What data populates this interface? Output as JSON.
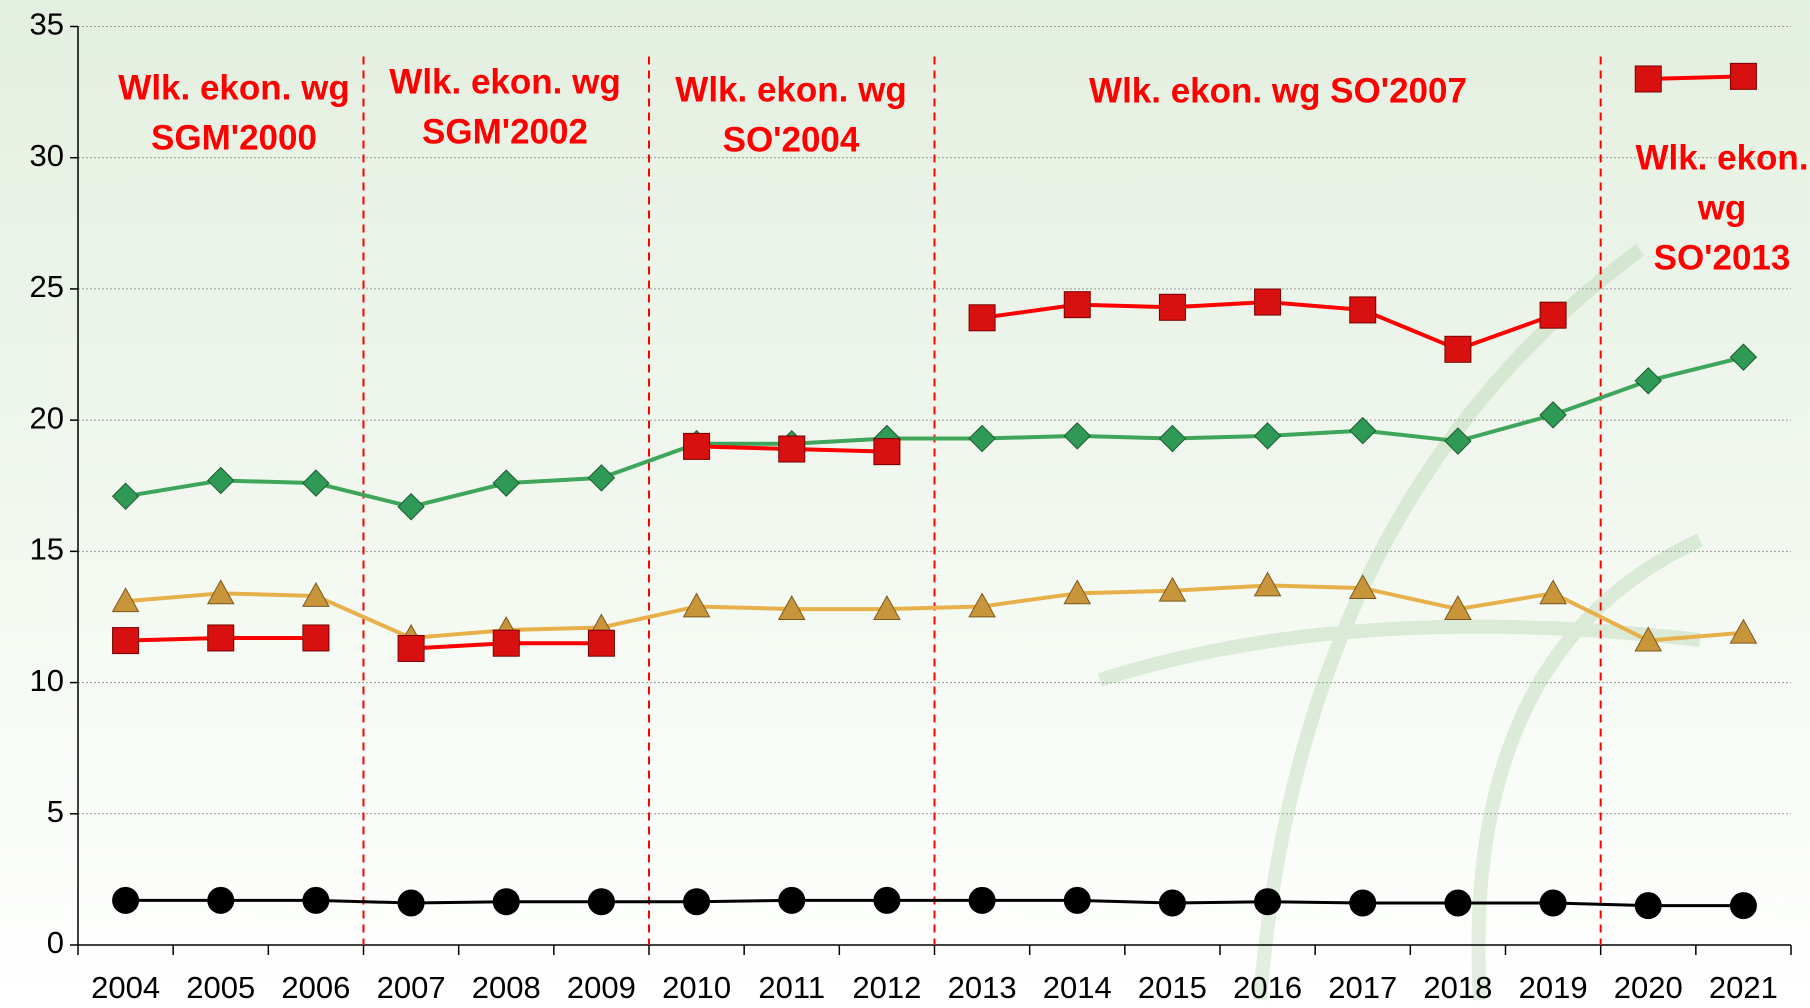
{
  "chart_data": {
    "type": "line",
    "categories": [
      "2004",
      "2005",
      "2006",
      "2007",
      "2008",
      "2009",
      "2010",
      "2011",
      "2012",
      "2013",
      "2014",
      "2015",
      "2016",
      "2017",
      "2018",
      "2019",
      "2020",
      "2021"
    ],
    "ylim": [
      0,
      35
    ],
    "yticks": [
      0,
      5,
      10,
      15,
      20,
      25,
      30,
      35
    ],
    "grid": true,
    "series": [
      {
        "color": "#e8b04a",
        "marker": "triangle",
        "values": [
          13.1,
          13.4,
          13.3,
          11.7,
          12.0,
          12.1,
          12.9,
          12.8,
          12.8,
          12.9,
          13.4,
          13.5,
          13.7,
          13.6,
          12.8,
          13.4,
          11.6,
          11.9
        ]
      },
      {
        "color": "#3ea55a",
        "marker": "diamond",
        "values": [
          17.1,
          17.7,
          17.6,
          16.7,
          17.6,
          17.8,
          19.1,
          19.1,
          19.3,
          19.3,
          19.4,
          19.3,
          19.4,
          19.6,
          19.2,
          20.2,
          21.5,
          22.4
        ]
      },
      {
        "color": "#ff0000",
        "marker": "square",
        "values": [
          11.6,
          11.7,
          11.7,
          null,
          null,
          null,
          null,
          null,
          null,
          null,
          null,
          null,
          null,
          null,
          null,
          null,
          null,
          null
        ]
      },
      {
        "color": "#ff0000",
        "marker": "square",
        "values": [
          null,
          null,
          null,
          11.3,
          11.5,
          11.5,
          null,
          null,
          null,
          null,
          null,
          null,
          null,
          null,
          null,
          null,
          null,
          null
        ]
      },
      {
        "color": "#ff0000",
        "marker": "square",
        "values": [
          null,
          null,
          null,
          null,
          null,
          null,
          19.0,
          18.9,
          18.8,
          null,
          null,
          null,
          null,
          null,
          null,
          null,
          null,
          null
        ]
      },
      {
        "color": "#ff0000",
        "marker": "square",
        "values": [
          null,
          null,
          null,
          null,
          null,
          null,
          null,
          null,
          null,
          23.9,
          24.4,
          24.3,
          24.5,
          24.2,
          22.7,
          24.0,
          null,
          null
        ]
      },
      {
        "color": "#ff0000",
        "marker": "square",
        "values": [
          null,
          null,
          null,
          null,
          null,
          null,
          null,
          null,
          null,
          null,
          null,
          null,
          null,
          null,
          null,
          null,
          33.0,
          33.1
        ]
      },
      {
        "color": "#000000",
        "marker": "circle",
        "values": [
          1.7,
          1.7,
          1.7,
          1.6,
          1.65,
          1.65,
          1.65,
          1.7,
          1.7,
          1.7,
          1.7,
          1.6,
          1.65,
          1.6,
          1.6,
          1.6,
          1.5,
          1.5
        ]
      }
    ],
    "annotations": [
      {
        "lines": [
          "Wlk. ekon. wg",
          "SGM'2000"
        ]
      },
      {
        "lines": [
          "Wlk. ekon. wg",
          "SGM'2002"
        ]
      },
      {
        "lines": [
          "Wlk. ekon. wg",
          "SO'2004"
        ]
      },
      {
        "lines": [
          "Wlk. ekon. wg SO'2007"
        ]
      },
      {
        "lines": [
          "Wlk. ekon.",
          "wg",
          "SO'2013"
        ]
      }
    ]
  }
}
